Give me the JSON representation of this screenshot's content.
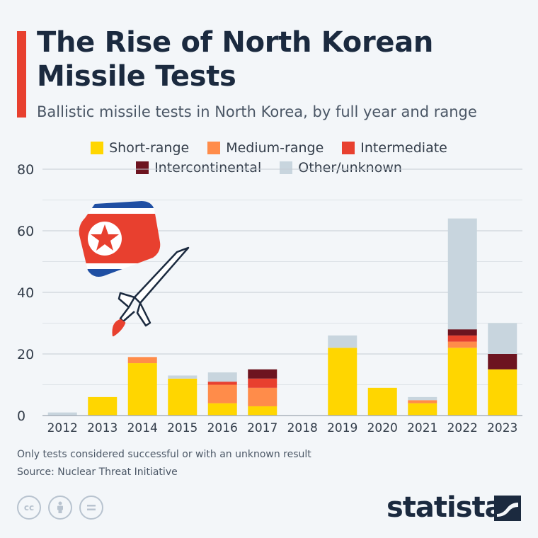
{
  "header": {
    "title": "The Rise of North Korean Missile Tests",
    "subtitle": "Ballistic missile tests in North Korea, by full year and range"
  },
  "legend": {
    "items": [
      {
        "label": "Short-range",
        "color": "#ffd600"
      },
      {
        "label": "Medium-range",
        "color": "#ff8c4a"
      },
      {
        "label": "Intermediate",
        "color": "#e8402f"
      },
      {
        "label": "Intercontinental",
        "color": "#6d1420"
      },
      {
        "label": "Other/unknown",
        "color": "#c8d5de"
      }
    ]
  },
  "chart_data": {
    "type": "bar",
    "stacked": true,
    "categories": [
      "2012",
      "2013",
      "2014",
      "2015",
      "2016",
      "2017",
      "2018",
      "2019",
      "2020",
      "2021",
      "2022",
      "2023"
    ],
    "series": [
      {
        "name": "Short-range",
        "color": "#ffd600",
        "values": [
          0,
          6,
          17,
          12,
          4,
          3,
          0,
          22,
          9,
          4,
          22,
          15
        ]
      },
      {
        "name": "Medium-range",
        "color": "#ff8c4a",
        "values": [
          0,
          0,
          2,
          0,
          6,
          6,
          0,
          0,
          0,
          1,
          2,
          0
        ]
      },
      {
        "name": "Intermediate",
        "color": "#e8402f",
        "values": [
          0,
          0,
          0,
          0,
          1,
          3,
          0,
          0,
          0,
          0,
          2,
          0
        ]
      },
      {
        "name": "Intercontinental",
        "color": "#6d1420",
        "values": [
          0,
          0,
          0,
          0,
          0,
          3,
          0,
          0,
          0,
          0,
          2,
          5
        ]
      },
      {
        "name": "Other/unknown",
        "color": "#c8d5de",
        "values": [
          1,
          0,
          0,
          1,
          3,
          0,
          0,
          4,
          0,
          1,
          36,
          10
        ]
      }
    ],
    "ylim": [
      0,
      80
    ],
    "yticks": [
      0,
      20,
      40,
      60,
      80
    ],
    "grid": true,
    "legend_position": "top-center"
  },
  "footer": {
    "note": "Only tests considered successful or with an unknown result",
    "source": "Source: Nuclear Threat Initiative",
    "brand": "statista",
    "license_icons": [
      "cc",
      "by",
      "nd"
    ]
  },
  "illustration": {
    "icons": [
      "north-korea-flag-icon",
      "missile-icon"
    ]
  }
}
